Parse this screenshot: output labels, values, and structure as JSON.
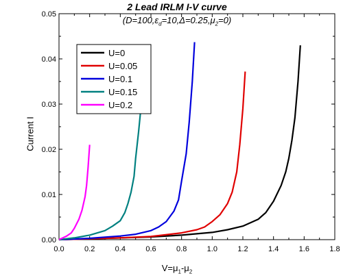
{
  "chart_data": {
    "type": "line",
    "title": "2 Lead IRLM I-V curve",
    "subtitle": "(D=100,ε_d=10,Δ=0.25,μ_2=0)",
    "xlabel": "V=μ_1-μ_2",
    "ylabel": "Current I",
    "xlim": [
      0.0,
      1.8
    ],
    "ylim": [
      0.0,
      0.05
    ],
    "xticks": [
      "0.0",
      "0.2",
      "0.4",
      "0.6",
      "0.8",
      "1.0",
      "1.2",
      "1.4",
      "1.6",
      "1.8"
    ],
    "yticks": [
      "0.00",
      "0.01",
      "0.02",
      "0.03",
      "0.04",
      "0.05"
    ],
    "grid": false,
    "legend_position": "top-left",
    "series": [
      {
        "name": "U=0",
        "color": "#000000",
        "x": [
          0.0,
          0.2,
          0.4,
          0.6,
          0.8,
          1.0,
          1.1,
          1.2,
          1.3,
          1.35,
          1.4,
          1.45,
          1.48,
          1.5,
          1.52,
          1.54,
          1.56,
          1.575
        ],
        "y": [
          0.0,
          0.0002,
          0.0004,
          0.0006,
          0.001,
          0.0016,
          0.0022,
          0.003,
          0.0045,
          0.006,
          0.0085,
          0.012,
          0.015,
          0.018,
          0.022,
          0.027,
          0.035,
          0.043
        ]
      },
      {
        "name": "U=0.05",
        "color": "#e00000",
        "x": [
          0.0,
          0.2,
          0.4,
          0.6,
          0.8,
          0.9,
          0.95,
          1.0,
          1.05,
          1.1,
          1.13,
          1.16,
          1.18,
          1.2,
          1.215
        ],
        "y": [
          0.0,
          0.0002,
          0.0004,
          0.0007,
          0.0015,
          0.0022,
          0.0028,
          0.004,
          0.0055,
          0.008,
          0.0105,
          0.015,
          0.021,
          0.029,
          0.0372
        ]
      },
      {
        "name": "U=0.1",
        "color": "#0000dd",
        "x": [
          0.0,
          0.2,
          0.4,
          0.5,
          0.6,
          0.65,
          0.7,
          0.75,
          0.78,
          0.8,
          0.83,
          0.85,
          0.87,
          0.885
        ],
        "y": [
          0.0,
          0.0003,
          0.0008,
          0.0012,
          0.002,
          0.0028,
          0.004,
          0.0063,
          0.0088,
          0.013,
          0.019,
          0.026,
          0.035,
          0.0437
        ]
      },
      {
        "name": "U=0.15",
        "color": "#008080",
        "x": [
          0.0,
          0.1,
          0.2,
          0.3,
          0.35,
          0.4,
          0.43,
          0.45,
          0.47,
          0.49,
          0.5,
          0.52,
          0.54,
          0.55
        ],
        "y": [
          0.0,
          0.0004,
          0.001,
          0.002,
          0.003,
          0.0042,
          0.006,
          0.008,
          0.0105,
          0.014,
          0.018,
          0.024,
          0.031,
          0.035
        ]
      },
      {
        "name": "U=0.2",
        "color": "#ff00ff",
        "x": [
          0.0,
          0.05,
          0.08,
          0.1,
          0.13,
          0.15,
          0.17,
          0.18,
          0.19,
          0.2
        ],
        "y": [
          0.0,
          0.0008,
          0.0015,
          0.0025,
          0.0045,
          0.0065,
          0.0095,
          0.012,
          0.016,
          0.021
        ]
      }
    ]
  }
}
